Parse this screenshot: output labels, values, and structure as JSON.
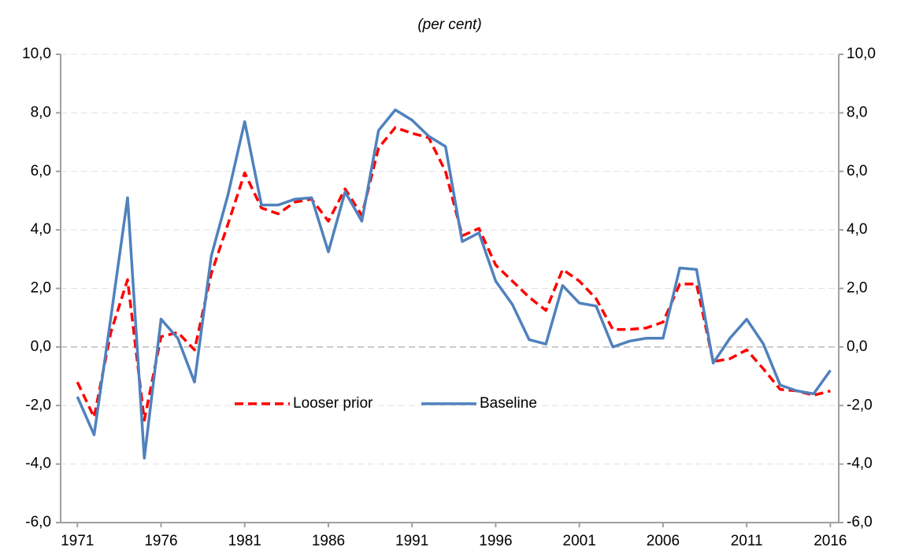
{
  "chart_data": {
    "type": "line",
    "title": "(per cent)",
    "x": [
      1971,
      1972,
      1973,
      1974,
      1975,
      1976,
      1977,
      1978,
      1979,
      1980,
      1981,
      1982,
      1983,
      1984,
      1985,
      1986,
      1987,
      1988,
      1989,
      1990,
      1991,
      1992,
      1993,
      1994,
      1995,
      1996,
      1997,
      1998,
      1999,
      2000,
      2001,
      2002,
      2003,
      2004,
      2005,
      2006,
      2007,
      2008,
      2009,
      2010,
      2011,
      2012,
      2013,
      2014,
      2015,
      2016
    ],
    "series": [
      {
        "name": "Looser prior",
        "color": "#ff0000",
        "dashed": true,
        "values": [
          -1.2,
          -2.4,
          0.5,
          2.3,
          -2.5,
          0.35,
          0.5,
          -0.1,
          2.5,
          4.2,
          5.95,
          4.75,
          4.55,
          4.95,
          5.05,
          4.3,
          5.4,
          4.5,
          6.8,
          7.5,
          7.3,
          7.15,
          6.0,
          3.8,
          4.05,
          2.8,
          2.25,
          1.7,
          1.25,
          2.65,
          2.25,
          1.65,
          0.6,
          0.6,
          0.65,
          0.85,
          2.15,
          2.15,
          -0.5,
          -0.4,
          -0.1,
          -0.75,
          -1.45,
          -1.5,
          -1.65,
          -1.5
        ]
      },
      {
        "name": "Baseline",
        "color": "#4f81bd",
        "dashed": false,
        "values": [
          -1.7,
          -3.0,
          1.0,
          5.1,
          -3.8,
          0.95,
          0.3,
          -1.2,
          3.1,
          5.2,
          7.7,
          4.85,
          4.85,
          5.05,
          5.1,
          3.25,
          5.3,
          4.3,
          7.4,
          8.1,
          7.75,
          7.2,
          6.85,
          3.6,
          3.9,
          2.25,
          1.45,
          0.25,
          0.1,
          2.1,
          1.5,
          1.4,
          0.0,
          0.2,
          0.3,
          0.3,
          2.7,
          2.65,
          -0.55,
          0.3,
          0.95,
          0.1,
          -1.3,
          -1.5,
          -1.6,
          -0.8
        ]
      }
    ],
    "xlim": [
      1970,
      2016.5
    ],
    "xticks": [
      1971,
      1976,
      1981,
      1986,
      1991,
      1996,
      2001,
      2006,
      2011,
      2016
    ],
    "ylim": [
      -6,
      10
    ],
    "yticks": [
      {
        "value": -6,
        "label": "-6,0"
      },
      {
        "value": -4,
        "label": "-4,0"
      },
      {
        "value": -2,
        "label": "-2,0"
      },
      {
        "value": 0,
        "label": "0,0"
      },
      {
        "value": 2,
        "label": "2,0"
      },
      {
        "value": 4,
        "label": "4,0"
      },
      {
        "value": 6,
        "label": "6,0"
      },
      {
        "value": 8,
        "label": "8,0"
      },
      {
        "value": 10,
        "label": "10,0"
      }
    ],
    "y2lim": [
      -6,
      10
    ],
    "y2ticks": [
      {
        "value": -6,
        "label": "-6,0"
      },
      {
        "value": -4,
        "label": "-4,0"
      },
      {
        "value": -2,
        "label": "-2,0"
      },
      {
        "value": 0,
        "label": "0,0"
      },
      {
        "value": 2,
        "label": "2,0"
      },
      {
        "value": 4,
        "label": "4,0"
      },
      {
        "value": 6,
        "label": "6,0"
      },
      {
        "value": 8,
        "label": "8,0"
      },
      {
        "value": 10,
        "label": "10,0"
      }
    ],
    "grid": true,
    "legend": "bottom"
  }
}
